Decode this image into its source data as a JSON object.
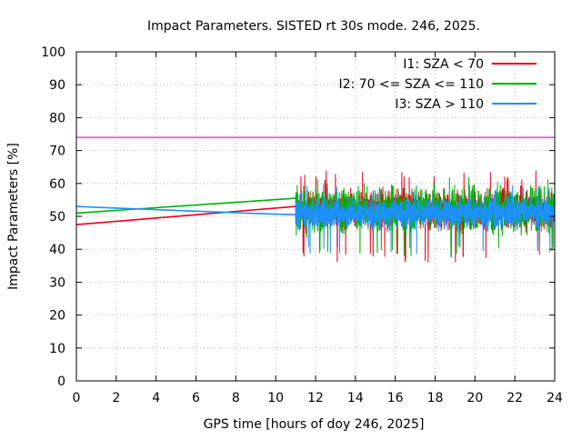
{
  "chart_data": {
    "type": "line",
    "title": "Impact Parameters. SISTED rt 30s mode. 246, 2025.",
    "xlabel": "GPS time [hours of doy 246, 2025]",
    "ylabel": "Impact Parameters [%]",
    "xlim": [
      0,
      24
    ],
    "ylim": [
      0,
      100
    ],
    "xticks": [
      0,
      2,
      4,
      6,
      8,
      10,
      12,
      14,
      16,
      18,
      20,
      22,
      24
    ],
    "yticks": [
      0,
      10,
      20,
      30,
      40,
      50,
      60,
      70,
      80,
      90,
      100
    ],
    "grid": true,
    "legend_position": "top-right",
    "reference_line": {
      "y": 74,
      "color": "#9400d3"
    },
    "series": [
      {
        "name": "I1: SZA < 70",
        "color": "#e8001c",
        "trend": {
          "x": [
            0,
            11
          ],
          "y": [
            47.5,
            53
          ]
        },
        "noise": {
          "x_start": 11,
          "x_end": 24,
          "mean": 52,
          "spread": 4.5,
          "min": 36,
          "max": 64
        }
      },
      {
        "name": "I2: 70 <= SZA <= 110",
        "color": "#00b000",
        "trend": {
          "x": [
            0,
            11
          ],
          "y": [
            51,
            55.5
          ]
        },
        "noise": {
          "x_start": 11,
          "x_end": 24,
          "mean": 52,
          "spread": 5,
          "min": 37.5,
          "max": 62
        }
      },
      {
        "name": "I3: SZA > 110",
        "color": "#1e90ff",
        "trend": {
          "x": [
            0,
            2,
            8.5,
            11
          ],
          "y": [
            53,
            52.5,
            51,
            50.5
          ]
        },
        "noise": {
          "x_start": 11,
          "x_end": 24,
          "mean": 51,
          "spread": 3.5,
          "min": 38.5,
          "max": 60
        }
      }
    ]
  }
}
